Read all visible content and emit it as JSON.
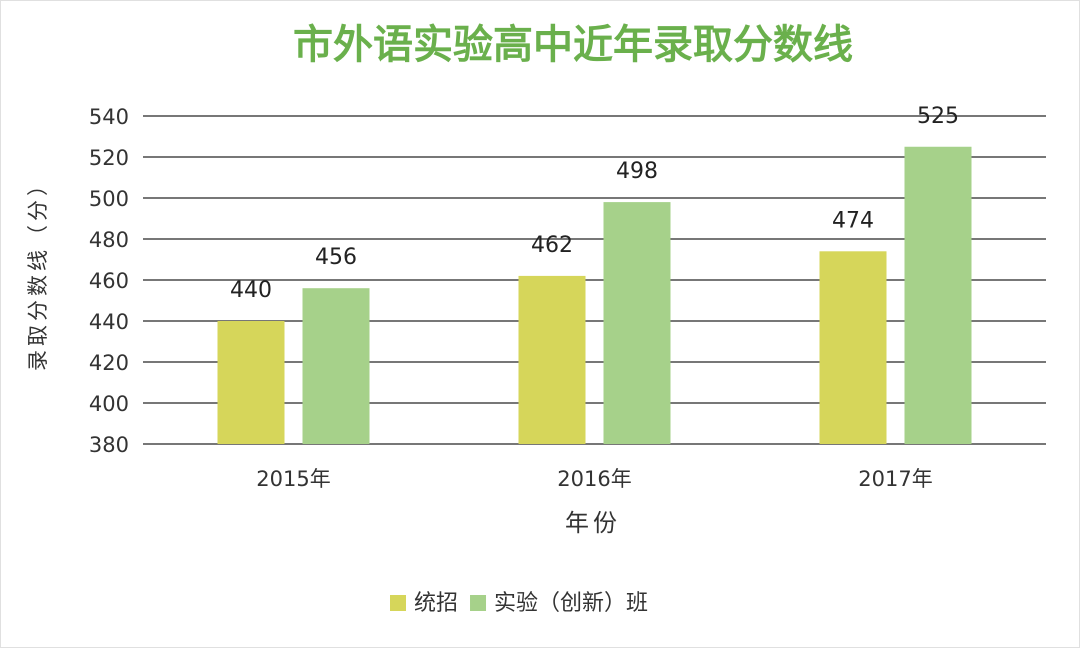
{
  "chart_data": {
    "type": "bar",
    "title": "市外语实验高中近年录取分数线",
    "xlabel": "年份",
    "ylabel": "录取分数线（分）",
    "categories": [
      "2015年",
      "2016年",
      "2017年"
    ],
    "series": [
      {
        "name": "统招",
        "values": [
          440,
          462,
          474
        ],
        "color": "#d6d65a"
      },
      {
        "name": "实验（创新）班",
        "values": [
          456,
          498,
          525
        ],
        "color": "#a6d18a"
      }
    ],
    "ylim": [
      380,
      540
    ],
    "yticks": [
      380,
      400,
      420,
      440,
      460,
      480,
      500,
      520,
      540
    ],
    "grid": true,
    "legend": "bottom",
    "colors": {
      "title": "#6ab04c",
      "grid": "#4a4a4a",
      "text": "#333333"
    }
  }
}
